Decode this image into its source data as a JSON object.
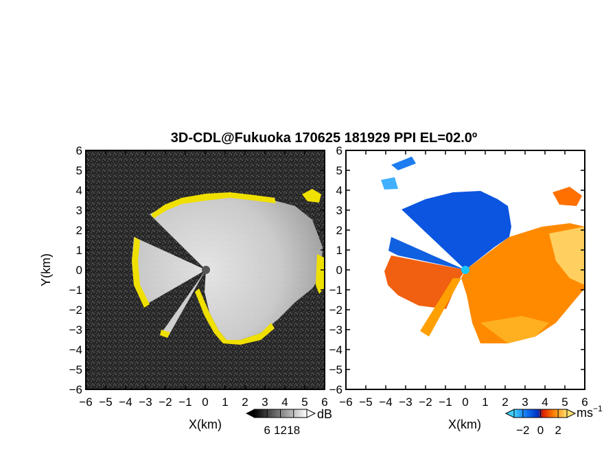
{
  "chart_data": [
    {
      "type": "heatmap",
      "panel": "reflectivity",
      "title": "3D-CDL@Fukuoka 170625 181929 PPI EL=02.0º",
      "xlabel": "X(km)",
      "ylabel": "Y(km)",
      "xlim": [
        -6,
        6
      ],
      "ylim": [
        -6,
        6
      ],
      "xticks": [
        "-6",
        "-5",
        "-4",
        "-3",
        "-2",
        "-1",
        "0",
        "1",
        "2",
        "3",
        "4",
        "5",
        "6"
      ],
      "yticks": [
        "6",
        "5",
        "4",
        "3",
        "2",
        "1",
        "0",
        "-1",
        "-2",
        "-3",
        "-4",
        "-5",
        "-6"
      ],
      "colorbar": {
        "unit": "dB",
        "ticks": [
          "6",
          "12",
          "18"
        ],
        "range": [
          0,
          24
        ],
        "colors": [
          "#000000",
          "#ffffff"
        ]
      },
      "highlight_color": "#f0e000",
      "background": "#2a2a2a"
    },
    {
      "type": "heatmap",
      "panel": "doppler-velocity",
      "xlabel": "X(km)",
      "xlim": [
        -6,
        6
      ],
      "ylim": [
        -6,
        6
      ],
      "xticks": [
        "-6",
        "-5",
        "-4",
        "-3",
        "-2",
        "-1",
        "0",
        "1",
        "2",
        "3",
        "4",
        "5",
        "6"
      ],
      "yticks": [
        "6",
        "5",
        "4",
        "3",
        "2",
        "1",
        "0",
        "-1",
        "-2",
        "-3",
        "-4",
        "-5",
        "-6"
      ],
      "colorbar": {
        "unit": "ms",
        "unit_exp": "−1",
        "ticks": [
          "−2",
          "0",
          "2"
        ],
        "range": [
          -3,
          3
        ],
        "colors": [
          "#40d0ff",
          "#0050e0",
          "#e02000",
          "#ff9000",
          "#ffe070"
        ]
      },
      "background": "#ffffff"
    }
  ]
}
